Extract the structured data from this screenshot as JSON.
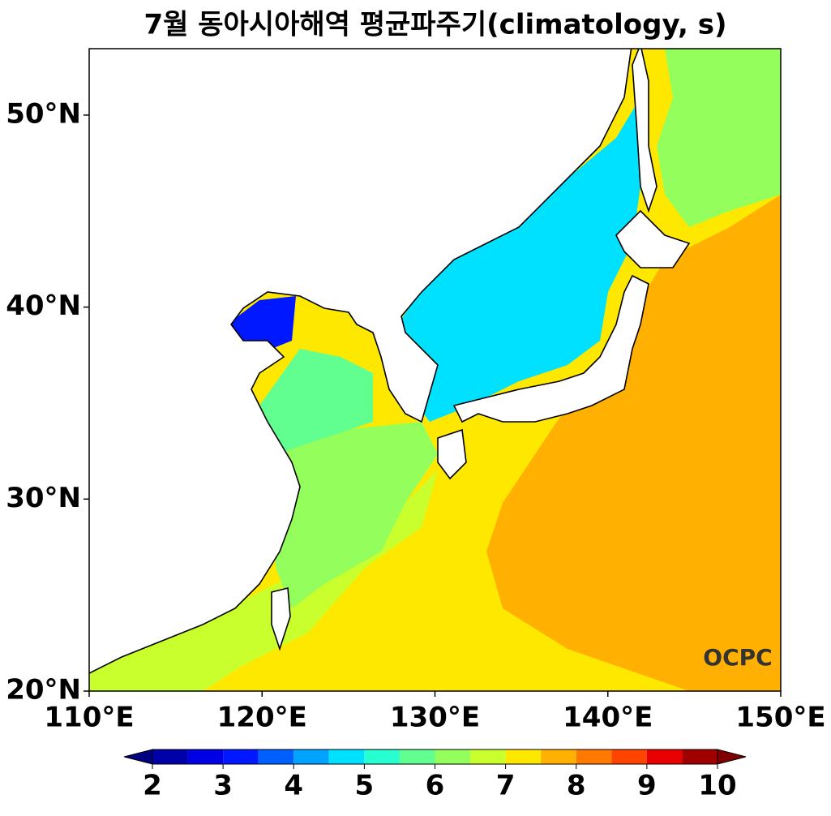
{
  "chart_data": {
    "type": "contour_map",
    "title": "7월 동아시아해역 평균파주기(climatology, s)",
    "xlim": [
      110,
      150
    ],
    "ylim": [
      20,
      53.46
    ],
    "xticks": [
      {
        "value": 110,
        "label": "110°E"
      },
      {
        "value": 120,
        "label": "120°E"
      },
      {
        "value": 130,
        "label": "130°E"
      },
      {
        "value": 140,
        "label": "140°E"
      },
      {
        "value": 150,
        "label": "150°E"
      }
    ],
    "yticks": [
      {
        "value": 20,
        "label": "20°N"
      },
      {
        "value": 30,
        "label": "30°N"
      },
      {
        "value": 40,
        "label": "40°N"
      },
      {
        "value": 50,
        "label": "50°N"
      }
    ],
    "colorbar_levels": [
      2,
      2.5,
      3,
      3.5,
      4,
      4.5,
      5,
      5.5,
      6,
      6.5,
      7,
      7.5,
      8,
      8.5,
      9,
      9.5,
      10
    ],
    "colorbar_colors": [
      "#0000a8",
      "#0000e4",
      "#0018ff",
      "#0060ff",
      "#00a4ff",
      "#00e0ff",
      "#28ffd0",
      "#60ff90",
      "#94ff5c",
      "#c8ff2c",
      "#ffe800",
      "#ffb000",
      "#ff7800",
      "#ff4400",
      "#e80000",
      "#a00000"
    ],
    "extend_colors": [
      "#000080",
      "#800000"
    ],
    "colorbar_ticks": [
      2,
      3,
      4,
      5,
      6,
      7,
      8,
      9,
      10
    ],
    "logo": "OCPC"
  }
}
